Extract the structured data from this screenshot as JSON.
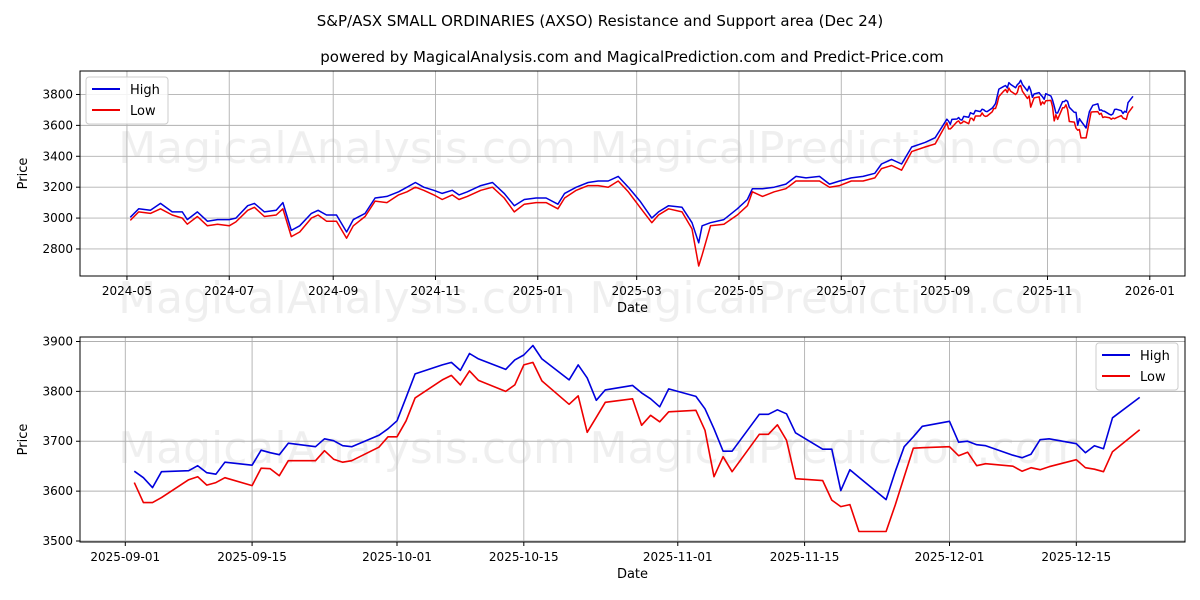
{
  "title": "S&P/ASX SMALL ORDINARIES (AXSO) Resistance and Support area (Dec 24)",
  "subtitle": "powered by MagicalAnalysis.com and MagicalPrediction.com and Predict-Price.com",
  "watermarks": [
    "MagicalAnalysis.com",
    "MagicalPrediction.com"
  ],
  "colors": {
    "high": "#0000dd",
    "low": "#ee0000"
  },
  "chart_data": [
    {
      "type": "line",
      "xlabel": "Date",
      "ylabel": "Price",
      "xlim": [
        "2024-04-03",
        "2026-01-22"
      ],
      "ylim": [
        2625,
        3952
      ],
      "grid": true,
      "legend": "upper-left",
      "x_ticks": [
        "2024-05",
        "2024-07",
        "2024-09",
        "2024-11",
        "2025-01",
        "2025-03",
        "2025-05",
        "2025-07",
        "2025-09",
        "2025-11",
        "2026-01"
      ],
      "y_ticks": [
        2800,
        3000,
        3200,
        3400,
        3600,
        3800
      ],
      "note_series_continue_with_chart_1": true,
      "dates": [
        "2024-05-03",
        "2024-05-08",
        "2024-05-15",
        "2024-05-21",
        "2024-05-28",
        "2024-06-03",
        "2024-06-06",
        "2024-06-12",
        "2024-06-18",
        "2024-06-24",
        "2024-07-01",
        "2024-07-05",
        "2024-07-12",
        "2024-07-16",
        "2024-07-22",
        "2024-07-29",
        "2024-08-02",
        "2024-08-07",
        "2024-08-12",
        "2024-08-19",
        "2024-08-23",
        "2024-08-28",
        "2024-09-03",
        "2024-09-09",
        "2024-09-13",
        "2024-09-20",
        "2024-09-26",
        "2024-10-03",
        "2024-10-10",
        "2024-10-15",
        "2024-10-20",
        "2024-10-25",
        "2024-10-31",
        "2024-11-05",
        "2024-11-11",
        "2024-11-15",
        "2024-11-20",
        "2024-11-28",
        "2024-12-05",
        "2024-12-12",
        "2024-12-18",
        "2024-12-24",
        "2024-12-31",
        "2025-01-06",
        "2025-01-13",
        "2025-01-17",
        "2025-01-24",
        "2025-01-31",
        "2025-02-06",
        "2025-02-12",
        "2025-02-18",
        "2025-02-24",
        "2025-03-03",
        "2025-03-10",
        "2025-03-14",
        "2025-03-20",
        "2025-03-28",
        "2025-04-03",
        "2025-04-07",
        "2025-04-09",
        "2025-04-14",
        "2025-04-22",
        "2025-04-30",
        "2025-05-06",
        "2025-05-09",
        "2025-05-15",
        "2025-05-22",
        "2025-05-29",
        "2025-06-04",
        "2025-06-10",
        "2025-06-18",
        "2025-06-24",
        "2025-06-30",
        "2025-07-07",
        "2025-07-14",
        "2025-07-21",
        "2025-07-25",
        "2025-07-31",
        "2025-08-06",
        "2025-08-12",
        "2025-08-20",
        "2025-08-26"
      ],
      "series": [
        {
          "name": "High",
          "values": [
            3005,
            3060,
            3050,
            3095,
            3040,
            3040,
            2990,
            3040,
            2980,
            2990,
            2990,
            3000,
            3080,
            3095,
            3040,
            3050,
            3100,
            2920,
            2950,
            3030,
            3050,
            3020,
            3020,
            2910,
            2990,
            3030,
            3130,
            3140,
            3170,
            3200,
            3230,
            3200,
            3180,
            3160,
            3180,
            3150,
            3170,
            3210,
            3230,
            3160,
            3080,
            3120,
            3130,
            3130,
            3090,
            3160,
            3200,
            3230,
            3240,
            3240,
            3270,
            3200,
            3110,
            3000,
            3040,
            3080,
            3070,
            2970,
            2840,
            2950,
            2970,
            2990,
            3060,
            3120,
            3190,
            3190,
            3200,
            3220,
            3270,
            3260,
            3270,
            3220,
            3240,
            3260,
            3270,
            3290,
            3350,
            3380,
            3350,
            3460,
            3490,
            3520
          ]
        },
        {
          "name": "Low",
          "values": [
            2985,
            3040,
            3030,
            3060,
            3020,
            3000,
            2960,
            3010,
            2950,
            2960,
            2950,
            2975,
            3050,
            3070,
            3010,
            3020,
            3060,
            2880,
            2910,
            3000,
            3020,
            2980,
            2980,
            2870,
            2950,
            3010,
            3110,
            3100,
            3150,
            3170,
            3200,
            3180,
            3150,
            3120,
            3150,
            3120,
            3140,
            3180,
            3200,
            3130,
            3040,
            3090,
            3100,
            3100,
            3060,
            3130,
            3180,
            3210,
            3210,
            3200,
            3240,
            3170,
            3070,
            2970,
            3020,
            3060,
            3040,
            2930,
            2690,
            2760,
            2950,
            2960,
            3020,
            3080,
            3170,
            3140,
            3170,
            3190,
            3240,
            3240,
            3240,
            3200,
            3210,
            3240,
            3240,
            3260,
            3320,
            3340,
            3310,
            3430,
            3460,
            3480
          ]
        }
      ]
    },
    {
      "type": "line",
      "xlabel": "Date",
      "ylabel": "Price",
      "xlim": [
        "2025-08-27",
        "2025-12-27"
      ],
      "ylim": [
        3498,
        3909
      ],
      "grid": true,
      "legend": "upper-right",
      "x_ticks": [
        "2025-09-01",
        "2025-09-15",
        "2025-10-01",
        "2025-10-15",
        "2025-11-01",
        "2025-11-15",
        "2025-12-01",
        "2025-12-15"
      ],
      "y_ticks": [
        3500,
        3600,
        3700,
        3800,
        3900
      ],
      "dates": [
        "2025-09-02",
        "2025-09-03",
        "2025-09-04",
        "2025-09-05",
        "2025-09-08",
        "2025-09-09",
        "2025-09-10",
        "2025-09-11",
        "2025-09-12",
        "2025-09-15",
        "2025-09-16",
        "2025-09-17",
        "2025-09-18",
        "2025-09-19",
        "2025-09-22",
        "2025-09-23",
        "2025-09-24",
        "2025-09-25",
        "2025-09-26",
        "2025-09-29",
        "2025-09-30",
        "2025-10-01",
        "2025-10-02",
        "2025-10-03",
        "2025-10-06",
        "2025-10-07",
        "2025-10-08",
        "2025-10-09",
        "2025-10-10",
        "2025-10-13",
        "2025-10-14",
        "2025-10-15",
        "2025-10-16",
        "2025-10-17",
        "2025-10-20",
        "2025-10-21",
        "2025-10-22",
        "2025-10-23",
        "2025-10-24",
        "2025-10-27",
        "2025-10-28",
        "2025-10-29",
        "2025-10-30",
        "2025-10-31",
        "2025-11-03",
        "2025-11-04",
        "2025-11-05",
        "2025-11-06",
        "2025-11-07",
        "2025-11-10",
        "2025-11-11",
        "2025-11-12",
        "2025-11-13",
        "2025-11-14",
        "2025-11-17",
        "2025-11-18",
        "2025-11-19",
        "2025-11-20",
        "2025-11-21",
        "2025-11-24",
        "2025-11-25",
        "2025-11-26",
        "2025-11-27",
        "2025-11-28",
        "2025-12-01",
        "2025-12-02",
        "2025-12-03",
        "2025-12-04",
        "2025-12-05",
        "2025-12-08",
        "2025-12-09",
        "2025-12-10",
        "2025-12-11",
        "2025-12-12",
        "2025-12-15",
        "2025-12-16",
        "2025-12-17",
        "2025-12-18",
        "2025-12-19",
        "2025-12-22"
      ],
      "series": [
        {
          "name": "High",
          "values": [
            3640,
            3627,
            3607,
            3639,
            3641,
            3651,
            3637,
            3634,
            3658,
            3652,
            3682,
            3677,
            3673,
            3696,
            3689,
            3705,
            3701,
            3691,
            3689,
            3712,
            3725,
            3741,
            3788,
            3835,
            3853,
            3858,
            3842,
            3876,
            3865,
            3844,
            3863,
            3873,
            3892,
            3865,
            3823,
            3853,
            3827,
            3782,
            3803,
            3812,
            3797,
            3785,
            3769,
            3805,
            3790,
            3765,
            3725,
            3680,
            3680,
            3754,
            3754,
            3763,
            3755,
            3717,
            3684,
            3684,
            3601,
            3643,
            3628,
            3583,
            3639,
            3689,
            3709,
            3730,
            3740,
            3698,
            3700,
            3693,
            3691,
            3672,
            3667,
            3674,
            3703,
            3705,
            3695,
            3677,
            3691,
            3685,
            3747,
            3788
          ]
        },
        {
          "name": "Low",
          "values": [
            3617,
            3577,
            3577,
            3587,
            3623,
            3629,
            3612,
            3617,
            3627,
            3611,
            3646,
            3645,
            3631,
            3661,
            3661,
            3681,
            3664,
            3658,
            3661,
            3688,
            3709,
            3709,
            3741,
            3787,
            3823,
            3832,
            3813,
            3841,
            3822,
            3800,
            3813,
            3853,
            3858,
            3821,
            3774,
            3791,
            3718,
            3748,
            3778,
            3785,
            3732,
            3752,
            3739,
            3759,
            3762,
            3722,
            3629,
            3669,
            3639,
            3714,
            3714,
            3733,
            3702,
            3625,
            3621,
            3582,
            3569,
            3573,
            3519,
            3519,
            3572,
            3629,
            3686,
            3687,
            3689,
            3671,
            3678,
            3651,
            3655,
            3650,
            3640,
            3647,
            3643,
            3649,
            3663,
            3647,
            3644,
            3639,
            3679,
            3723
          ]
        }
      ]
    }
  ]
}
